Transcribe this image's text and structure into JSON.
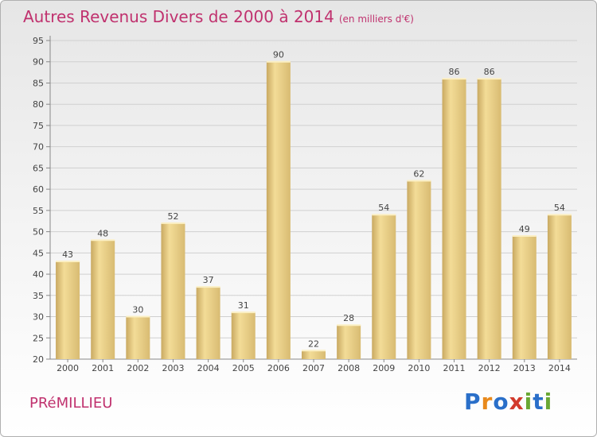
{
  "title": "Autres Revenus Divers de 2000 à 2014",
  "unit_note": "(en milliers d'€)",
  "commune": "PRéMILLIEU",
  "logo": {
    "letters": [
      "P",
      "r",
      "o",
      "x",
      "i",
      "t",
      "i"
    ],
    "colors": [
      "#2a6fc9",
      "#e8891c",
      "#2a6fc9",
      "#d23a2c",
      "#6aa834",
      "#2a6fc9",
      "#6aa834"
    ]
  },
  "colors": {
    "title": "#c0316e",
    "bar_light": "#f3dc97",
    "bar_dark": "#c9a961",
    "grid": "#d0d0d0"
  },
  "chart_data": {
    "type": "bar",
    "title": "Autres Revenus Divers de 2000 à 2014",
    "xlabel": "",
    "ylabel": "",
    "ylim": [
      20,
      95
    ],
    "yticks": [
      20,
      25,
      30,
      35,
      40,
      45,
      50,
      55,
      60,
      65,
      70,
      75,
      80,
      85,
      90,
      95
    ],
    "categories": [
      "2000",
      "2001",
      "2002",
      "2003",
      "2004",
      "2005",
      "2006",
      "2007",
      "2008",
      "2009",
      "2010",
      "2011",
      "2012",
      "2013",
      "2014"
    ],
    "values": [
      43,
      48,
      30,
      52,
      37,
      31,
      90,
      22,
      28,
      54,
      62,
      86,
      86,
      49,
      54
    ]
  }
}
